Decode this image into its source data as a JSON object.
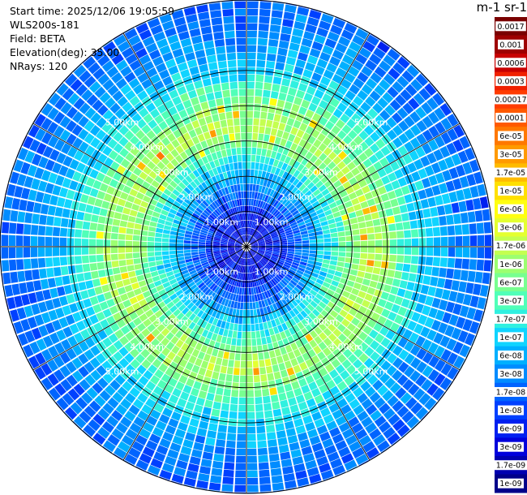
{
  "header": {
    "start_time": "Start time: 2025/12/06 19:05:59",
    "instrument": "WLS200s-181",
    "field": "Field: BETA",
    "elevation": "Elevation(deg): 35.00",
    "nrays": "NRays: 120"
  },
  "colorbar": {
    "title": "m-1 sr-1",
    "ticks": [
      "0.0017",
      "0.001",
      "0.0006",
      "0.0003",
      "0.00017",
      "0.0001",
      "6e-05",
      "3e-05",
      "1.7e-05",
      "1e-05",
      "6e-06",
      "3e-06",
      "1.7e-06",
      "1e-06",
      "6e-07",
      "3e-07",
      "1.7e-07",
      "1e-07",
      "6e-08",
      "3e-08",
      "1.7e-08",
      "1e-08",
      "6e-09",
      "3e-09",
      "1.7e-09",
      "1e-09"
    ],
    "colors": [
      "#7a0000",
      "#9e0000",
      "#c80000",
      "#f02000",
      "#ff3c00",
      "#ff5a00",
      "#ff7800",
      "#ff9a00",
      "#ffbb00",
      "#ffe000",
      "#ffff10",
      "#e4ff30",
      "#c4ff50",
      "#9cff70",
      "#78ff90",
      "#50ffb8",
      "#30f0e0",
      "#10d4ff",
      "#00b0ff",
      "#008cff",
      "#0064ff",
      "#0040ff",
      "#0020f0",
      "#0000dc",
      "#0000b0",
      "#00008a"
    ]
  },
  "chart_data": {
    "type": "heatmap",
    "projection": "polar PPI scan",
    "field": "BETA",
    "rays": 120,
    "range_rings_km": [
      1,
      2,
      3,
      4,
      5
    ],
    "range_labels": [
      "1.00km",
      "2.00km",
      "3.00km",
      "4.00km",
      "5.00km"
    ],
    "max_range_km": 7.0,
    "spoke_angles_deg": [
      0,
      30,
      60,
      90,
      120,
      150,
      180,
      210,
      240,
      270,
      300,
      330
    ],
    "radial_profile": {
      "range_km": [
        0.0,
        0.5,
        1.0,
        1.4,
        1.8,
        2.2,
        2.8,
        3.4,
        4.0,
        4.6,
        5.2,
        5.8,
        6.4,
        7.0
      ],
      "color_index": [
        22.5,
        22.5,
        22,
        20.5,
        19,
        17.2,
        14.8,
        12.4,
        13.6,
        15.8,
        17.5,
        18.8,
        19.6,
        20.2
      ]
    },
    "colorscale": "jet",
    "units": "m-1 sr-1"
  }
}
